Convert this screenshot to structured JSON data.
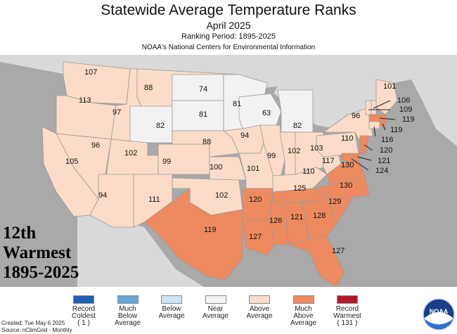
{
  "title": "Statewide Average Temperature Ranks",
  "subtitle": "April 2025",
  "period": "Ranking Period: 1895-2025",
  "agency": "NOAA's National Centers for Environmental Information",
  "overall": {
    "rank": "12th",
    "category": "Warmest",
    "range": "1895-2025"
  },
  "colors": {
    "record_coldest": "#1f5fb4",
    "much_below": "#6aa7d8",
    "below": "#cfe3f3",
    "near": "#f2f2f2",
    "above": "#fcdcc8",
    "much_above": "#ee8a5f",
    "record_warmest": "#b2182b",
    "ocean": "#a9a9a9",
    "foreign": "#d9d9d9"
  },
  "legend": [
    {
      "line1": "Record",
      "line2": "Coldest",
      "line3": "( 1 )",
      "color_key": "record_coldest"
    },
    {
      "line1": "Much",
      "line2": "Below",
      "line3": "Average",
      "color_key": "much_below"
    },
    {
      "line1": "Below",
      "line2": "Average",
      "line3": "",
      "color_key": "below"
    },
    {
      "line1": "Near",
      "line2": "Average",
      "line3": "",
      "color_key": "near"
    },
    {
      "line1": "Above",
      "line2": "Average",
      "line3": "",
      "color_key": "above"
    },
    {
      "line1": "Much",
      "line2": "Above",
      "line3": "Average",
      "color_key": "much_above"
    },
    {
      "line1": "Record",
      "line2": "Warmest",
      "line3": "( 131 )",
      "color_key": "record_warmest"
    }
  ],
  "footer": {
    "created": "Created: Tue May  6 2025",
    "source": "Source: nClimGrid - Monthly"
  },
  "logo_text": "NOAA",
  "states": [
    {
      "state": "WA",
      "rank": "107",
      "category": "above"
    },
    {
      "state": "OR",
      "rank": "113",
      "category": "above"
    },
    {
      "state": "ID",
      "rank": "97",
      "category": "above"
    },
    {
      "state": "MT",
      "rank": "88",
      "category": "above"
    },
    {
      "state": "ND",
      "rank": "74",
      "category": "near"
    },
    {
      "state": "MN",
      "rank": "81",
      "category": "near"
    },
    {
      "state": "WY",
      "rank": "82",
      "category": "near"
    },
    {
      "state": "SD",
      "rank": "81",
      "category": "near"
    },
    {
      "state": "WI",
      "rank": "63",
      "category": "near"
    },
    {
      "state": "MI",
      "rank": "82",
      "category": "near"
    },
    {
      "state": "NV",
      "rank": "96",
      "category": "above"
    },
    {
      "state": "UT",
      "rank": "102",
      "category": "above"
    },
    {
      "state": "CA",
      "rank": "105",
      "category": "above"
    },
    {
      "state": "CO",
      "rank": "99",
      "category": "above"
    },
    {
      "state": "NE",
      "rank": "88",
      "category": "above"
    },
    {
      "state": "IA",
      "rank": "94",
      "category": "above"
    },
    {
      "state": "KS",
      "rank": "100",
      "category": "above"
    },
    {
      "state": "MO",
      "rank": "101",
      "category": "above"
    },
    {
      "state": "IL",
      "rank": "99",
      "category": "above"
    },
    {
      "state": "IN",
      "rank": "102",
      "category": "above"
    },
    {
      "state": "OH",
      "rank": "103",
      "category": "above"
    },
    {
      "state": "KY",
      "rank": "110",
      "category": "above"
    },
    {
      "state": "AZ",
      "rank": "94",
      "category": "above"
    },
    {
      "state": "NM",
      "rank": "111",
      "category": "above"
    },
    {
      "state": "OK",
      "rank": "102",
      "category": "above"
    },
    {
      "state": "TX",
      "rank": "119",
      "category": "much_above"
    },
    {
      "state": "AR",
      "rank": "120",
      "category": "much_above"
    },
    {
      "state": "LA",
      "rank": "127",
      "category": "much_above"
    },
    {
      "state": "MS",
      "rank": "126",
      "category": "much_above"
    },
    {
      "state": "AL",
      "rank": "121",
      "category": "much_above"
    },
    {
      "state": "GA",
      "rank": "128",
      "category": "much_above"
    },
    {
      "state": "FL",
      "rank": "127",
      "category": "much_above"
    },
    {
      "state": "TN",
      "rank": "125",
      "category": "much_above"
    },
    {
      "state": "SC",
      "rank": "129",
      "category": "much_above"
    },
    {
      "state": "NC",
      "rank": "130",
      "category": "much_above"
    },
    {
      "state": "VA",
      "rank": "130",
      "category": "much_above"
    },
    {
      "state": "WV",
      "rank": "117",
      "category": "above"
    },
    {
      "state": "PA",
      "rank": "110",
      "category": "above"
    },
    {
      "state": "NY",
      "rank": "96",
      "category": "above"
    },
    {
      "state": "ME",
      "rank": "101",
      "category": "above"
    },
    {
      "state": "NH",
      "rank": "106",
      "category": "above"
    },
    {
      "state": "VT",
      "rank": "109",
      "category": "above"
    },
    {
      "state": "MA",
      "rank": "119",
      "category": "much_above"
    },
    {
      "state": "RI",
      "rank": "119",
      "category": "much_above"
    },
    {
      "state": "CT",
      "rank": "116",
      "category": "above"
    },
    {
      "state": "NJ",
      "rank": "120",
      "category": "much_above"
    },
    {
      "state": "DE",
      "rank": "121",
      "category": "much_above"
    },
    {
      "state": "MD",
      "rank": "124",
      "category": "much_above"
    }
  ]
}
